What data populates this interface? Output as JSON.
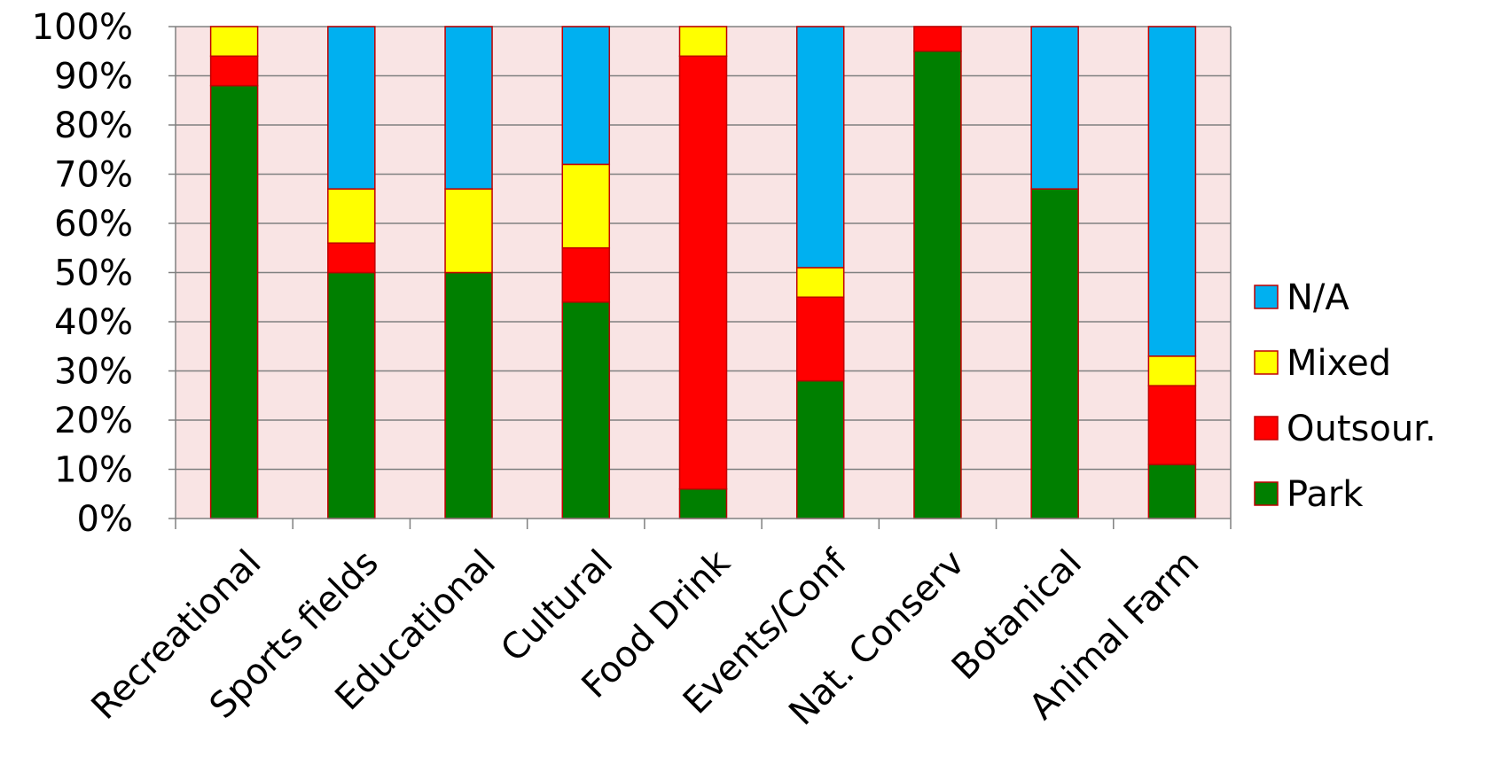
{
  "chart_data": {
    "type": "bar",
    "stacked": true,
    "title": "",
    "xlabel": "",
    "ylabel": "",
    "ylim": [
      0,
      100
    ],
    "y_ticks": [
      "0%",
      "10%",
      "20%",
      "30%",
      "40%",
      "50%",
      "60%",
      "70%",
      "80%",
      "90%",
      "100%"
    ],
    "grid": true,
    "legend_position": "right",
    "plot_background": "#F9E4E4",
    "categories": [
      "Recreational",
      "Sports fields",
      "Educational",
      "Cultural",
      "Food Drink",
      "Events/Conf",
      "Nat. Conserv",
      "Botanical",
      "Animal Farm"
    ],
    "series": [
      {
        "name": "Park",
        "color": "#007F00",
        "values": [
          88,
          50,
          50,
          44,
          6,
          28,
          95,
          67,
          11
        ]
      },
      {
        "name": "Outsour.",
        "color": "#FF0000",
        "values": [
          6,
          6,
          0,
          11,
          88,
          17,
          5,
          0,
          16
        ]
      },
      {
        "name": "Mixed",
        "color": "#FFFF00",
        "values": [
          6,
          11,
          17,
          17,
          6,
          6,
          0,
          0,
          6
        ]
      },
      {
        "name": "N/A",
        "color": "#00B0F0",
        "values": [
          0,
          33,
          33,
          28,
          0,
          49,
          0,
          33,
          67
        ]
      }
    ]
  }
}
